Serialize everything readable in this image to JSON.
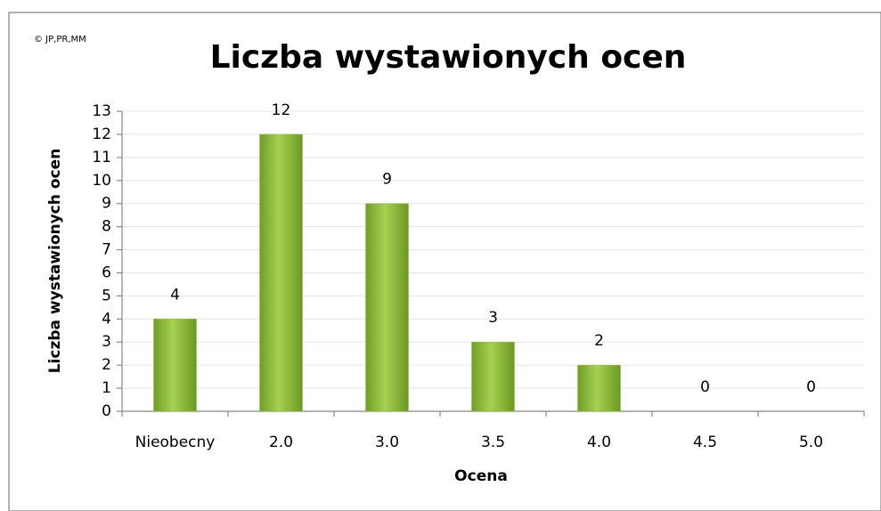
{
  "chart_data": {
    "type": "bar",
    "title": "Liczba wystawionych ocen",
    "note": "© JP,PR,MM",
    "x_label": "Ocena",
    "y_label": "Liczba wystawionych ocen",
    "categories": [
      "Nieobecny",
      "2.0",
      "3.0",
      "3.5",
      "4.0",
      "4.5",
      "5.0"
    ],
    "values": [
      4,
      12,
      9,
      3,
      2,
      0,
      0
    ],
    "color": "#8cbf3a",
    "ylim": [
      0,
      13
    ],
    "yticks": [
      0,
      1,
      2,
      3,
      4,
      5,
      6,
      7,
      8,
      9,
      10,
      11,
      12,
      13
    ],
    "grid": true
  }
}
